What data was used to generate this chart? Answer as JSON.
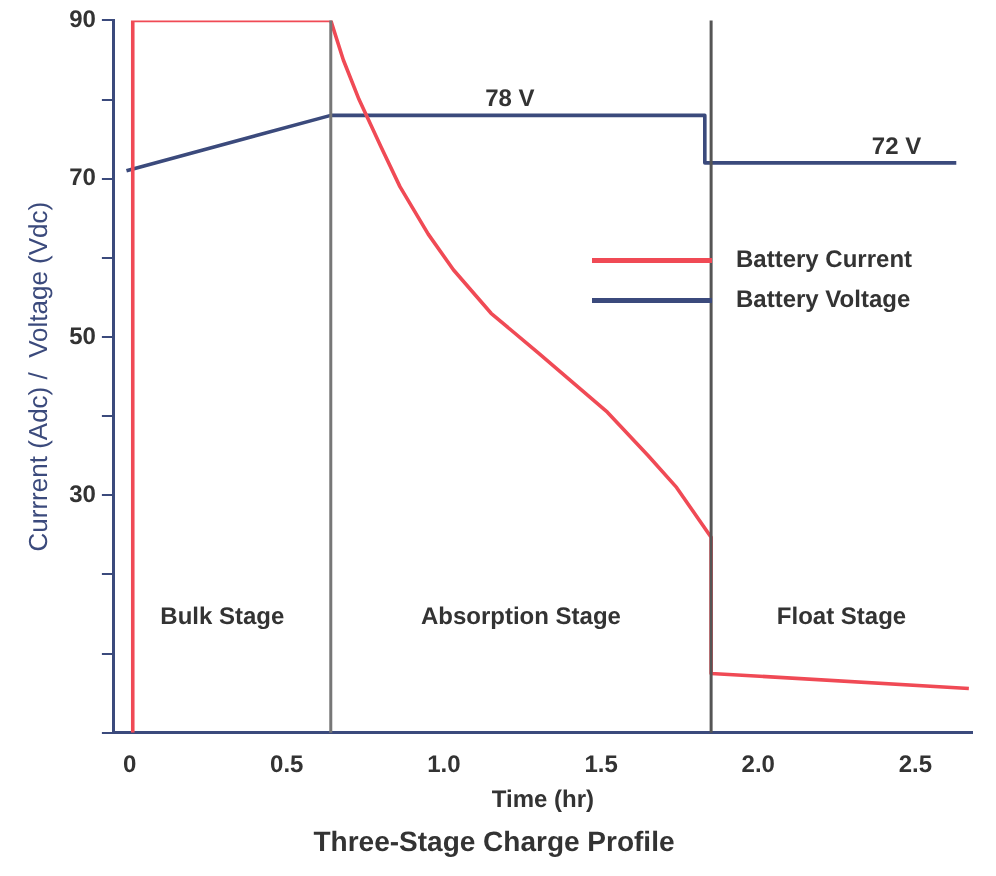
{
  "chart_data": {
    "type": "line",
    "title": "Three-Stage Charge Profile",
    "xlabel": "Time (hr)",
    "ylabel": "Currrent (Adc) /  Voltage (Vdc)",
    "series": [
      {
        "name": "Battery Current",
        "color": "#f04a55",
        "x": [
          0.01,
          0.01,
          0.64,
          0.68,
          0.73,
          0.8,
          0.86,
          0.95,
          1.03,
          1.15,
          1.3,
          1.52,
          1.65,
          1.74,
          1.85,
          1.85,
          2.67
        ],
        "values": [
          0,
          90,
          90,
          85,
          80,
          74,
          69,
          63,
          58.5,
          53,
          48,
          40.5,
          35,
          31,
          24.7,
          7.5,
          5.6
        ]
      },
      {
        "name": "Battery Voltage",
        "color": "#3b4a7c",
        "x": [
          -0.01,
          0.64,
          1.83,
          1.83,
          2.63
        ],
        "values": [
          71,
          78,
          78,
          72,
          72
        ]
      }
    ],
    "ref_lines": [
      {
        "axis": "x",
        "value": 0.64,
        "color": "#777777"
      },
      {
        "axis": "x",
        "value": 1.85,
        "color": "#555555"
      }
    ],
    "annotations": [
      {
        "text": "78 V",
        "x": 1.21,
        "y": 78
      },
      {
        "text": "72 V",
        "x": 2.44,
        "y": 72
      },
      "Bulk Stage",
      "Absorption Stage",
      "Float Stage"
    ],
    "xlim": [
      -0.05,
      2.68
    ],
    "ylim": [
      0,
      90
    ],
    "xticks": [
      0,
      0.5,
      {
        "value": 1,
        "label": "1.0"
      },
      1.5,
      {
        "value": 2,
        "label": "2.0"
      },
      2.5
    ],
    "yticks": [
      {
        "value": 0,
        "label": null
      },
      {
        "value": 10,
        "label": null
      },
      {
        "value": 20,
        "label": null
      },
      30,
      {
        "value": 40,
        "label": null
      },
      50,
      {
        "value": 60,
        "label": null
      },
      70,
      {
        "value": 80,
        "label": null
      },
      90
    ],
    "grid": false,
    "legend": "top right",
    "marker": "none",
    "line_style": "solid"
  }
}
